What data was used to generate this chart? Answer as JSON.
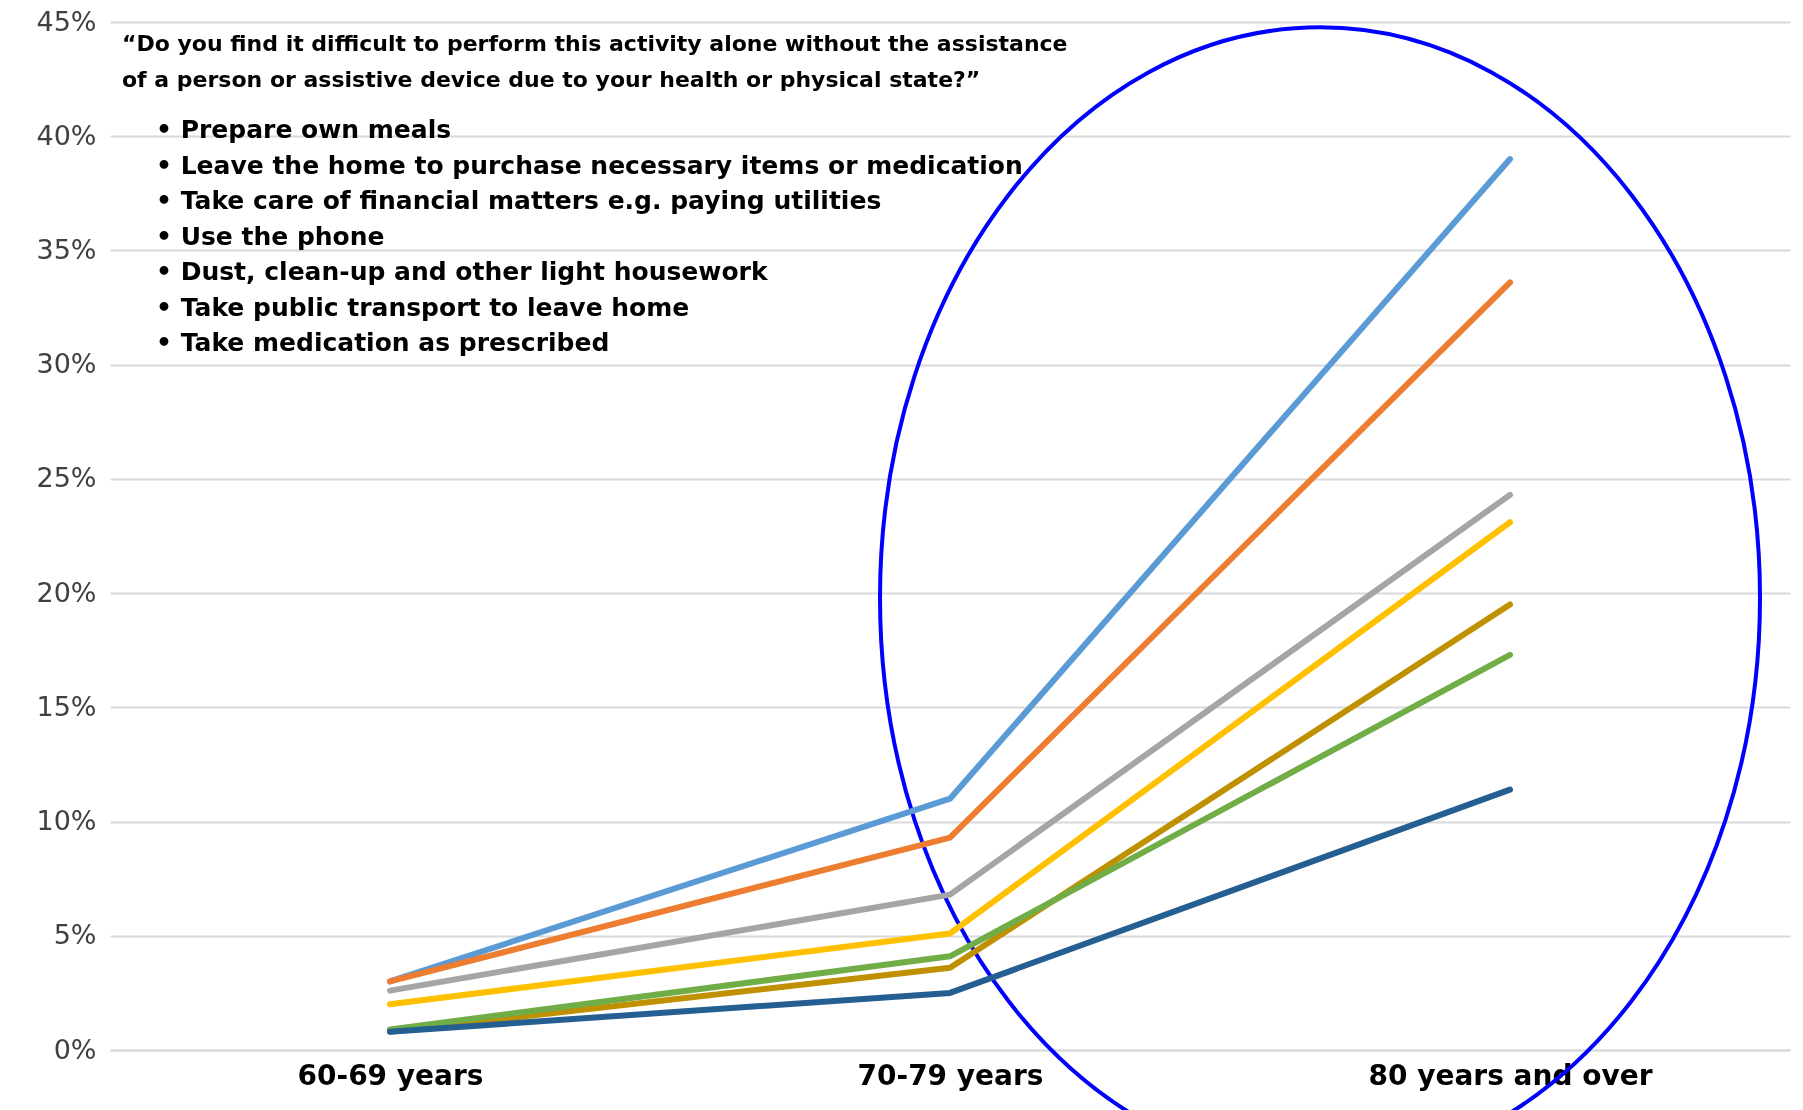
{
  "chart_data": {
    "type": "line",
    "title": "“Do you find it difficult to perform this activity alone without the assistance\nof a person or assistive device due to your health or physical state?”",
    "annotations": [
      "• Prepare own meals",
      "• Leave the home to purchase necessary items or medication",
      "• Take care of financial matters e.g. paying utilities",
      "• Use the phone",
      "• Dust, clean-up and other light housework",
      "• Take public transport to leave home",
      "• Take medication as prescribed"
    ],
    "categories": [
      "60-69 years",
      "70-79 years",
      "80 years and over"
    ],
    "series": [
      {
        "color": "#5b9bd5",
        "values": [
          3.0,
          11.0,
          39.0
        ]
      },
      {
        "color": "#ed7d31",
        "values": [
          3.0,
          9.3,
          33.6
        ]
      },
      {
        "color": "#a5a5a5",
        "values": [
          2.6,
          6.8,
          24.3
        ]
      },
      {
        "color": "#ffc000",
        "values": [
          2.0,
          5.1,
          23.1
        ]
      },
      {
        "color": "#bf9000",
        "values": [
          0.8,
          3.6,
          19.5
        ]
      },
      {
        "color": "#70ad47",
        "values": [
          0.9,
          4.1,
          17.3
        ]
      },
      {
        "color": "#255e91",
        "values": [
          0.8,
          2.5,
          11.4
        ]
      }
    ],
    "ylim": [
      0,
      45
    ],
    "yticks": [
      {
        "value": 0,
        "label": "0%"
      },
      {
        "value": 5,
        "label": "5%"
      },
      {
        "value": 10,
        "label": "10%"
      },
      {
        "value": 15,
        "label": "15%"
      },
      {
        "value": 20,
        "label": "20%"
      },
      {
        "value": 25,
        "label": "25%"
      },
      {
        "value": 30,
        "label": "30%"
      },
      {
        "value": 35,
        "label": "35%"
      },
      {
        "value": 40,
        "label": "40%"
      },
      {
        "value": 45,
        "label": "45%"
      }
    ],
    "grid": "y",
    "legend": false,
    "marker": "none",
    "line_style": "solid"
  }
}
